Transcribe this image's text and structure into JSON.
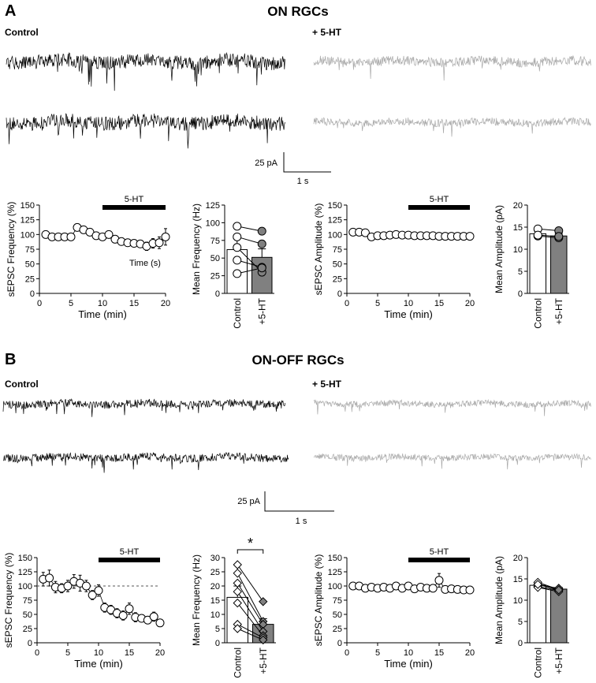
{
  "panels": [
    {
      "letter": "A",
      "title": "ON RGCs",
      "trace_labels": {
        "control": "Control",
        "drug": "+ 5-HT"
      },
      "scalebar": {
        "amp": "25 pA",
        "time": "1 s"
      }
    },
    {
      "letter": "B",
      "title": "ON-OFF  RGCs",
      "trace_labels": {
        "control": "Control",
        "drug": "+ 5-HT"
      },
      "scalebar": {
        "amp": "25 pA",
        "time": "1 s"
      }
    }
  ],
  "colors": {
    "control_trace": "#000000",
    "drug_trace": "#aaaaaa",
    "bar_drug": "#808080"
  },
  "chart_data": [
    {
      "id": "A1",
      "type": "scatter",
      "ylabel": "sEPSC Frequency (%)",
      "xlabel": "Time (min)",
      "xlim": [
        0,
        20
      ],
      "ylim": [
        0,
        150
      ],
      "xticks": [
        "0",
        "5",
        "10",
        "15",
        "20"
      ],
      "yticks": [
        "0",
        "25",
        "50",
        "75",
        "100",
        "125",
        "150"
      ],
      "drug_bar": {
        "label": "5-HT",
        "from": 10,
        "to": 20
      },
      "annotation": "Time (s)",
      "x": [
        1,
        2,
        3,
        4,
        5,
        6,
        7,
        8,
        9,
        10,
        11,
        12,
        13,
        14,
        15,
        16,
        17,
        18,
        19,
        20
      ],
      "y": [
        100,
        96,
        96,
        96,
        96,
        112,
        108,
        104,
        98,
        96,
        100,
        92,
        88,
        86,
        85,
        84,
        80,
        85,
        86,
        96
      ],
      "err": [
        0,
        0,
        0,
        0,
        0,
        4,
        5,
        4,
        4,
        5,
        5,
        4,
        4,
        4,
        4,
        5,
        7,
        8,
        10,
        14
      ]
    },
    {
      "id": "A2",
      "type": "bar",
      "ylabel": "Mean Frequency (Hz)",
      "ylim": [
        0,
        125
      ],
      "yticks": [
        "0",
        "25",
        "50",
        "75",
        "100",
        "125"
      ],
      "categories": [
        "Control",
        "+5-HT"
      ],
      "values": [
        62,
        51
      ],
      "err": [
        16,
        12
      ],
      "marker": "circle",
      "pairs": [
        [
          95,
          88
        ],
        [
          80,
          70
        ],
        [
          65,
          30
        ],
        [
          47,
          37
        ],
        [
          28,
          36
        ]
      ]
    },
    {
      "id": "A3",
      "type": "scatter",
      "ylabel": "sEPSC Amplitude (%)",
      "xlabel": "Time (min)",
      "xlim": [
        0,
        20
      ],
      "ylim": [
        0,
        150
      ],
      "xticks": [
        "0",
        "5",
        "10",
        "15",
        "20"
      ],
      "yticks": [
        "0",
        "25",
        "50",
        "75",
        "100",
        "125",
        "150"
      ],
      "drug_bar": {
        "label": "5-HT",
        "from": 10,
        "to": 20
      },
      "x": [
        1,
        2,
        3,
        4,
        5,
        6,
        7,
        8,
        9,
        10,
        11,
        12,
        13,
        14,
        15,
        16,
        17,
        18,
        19,
        20
      ],
      "y": [
        104,
        104,
        103,
        96,
        98,
        98,
        99,
        100,
        99,
        99,
        98,
        98,
        98,
        98,
        97,
        97,
        97,
        97,
        97,
        97
      ],
      "err": [
        0,
        0,
        0,
        0,
        2,
        3,
        3,
        3,
        3,
        3,
        3,
        3,
        3,
        3,
        3,
        3,
        3,
        3,
        3,
        3
      ]
    },
    {
      "id": "A4",
      "type": "bar",
      "ylabel": "Mean Amplitude (pA)",
      "ylim": [
        0,
        20
      ],
      "yticks": [
        "0",
        "5",
        "10",
        "15",
        "20"
      ],
      "categories": [
        "Control",
        "+5-HT"
      ],
      "values": [
        13.5,
        13.0
      ],
      "err": [
        0.6,
        0.6
      ],
      "marker": "circle",
      "pairs": [
        [
          14.6,
          14.2
        ],
        [
          13.0,
          12.6
        ],
        [
          13.2,
          12.9
        ]
      ]
    },
    {
      "id": "B1",
      "type": "scatter",
      "ylabel": "sEPSC Frequency (%)",
      "xlabel": "Time (min)",
      "xlim": [
        0,
        20
      ],
      "ylim": [
        0,
        150
      ],
      "xticks": [
        "0",
        "5",
        "10",
        "15",
        "20"
      ],
      "yticks": [
        "0",
        "25",
        "50",
        "75",
        "100",
        "125",
        "150"
      ],
      "drug_bar": {
        "label": "5-HT",
        "from": 10,
        "to": 20
      },
      "baseline": 100,
      "x": [
        1,
        2,
        3,
        4,
        5,
        6,
        7,
        8,
        9,
        10,
        11,
        12,
        13,
        14,
        15,
        16,
        17,
        18,
        19,
        20
      ],
      "y": [
        112,
        114,
        98,
        96,
        100,
        108,
        105,
        100,
        84,
        92,
        62,
        58,
        52,
        48,
        60,
        45,
        43,
        40,
        46,
        35
      ],
      "err": [
        12,
        14,
        10,
        8,
        10,
        12,
        14,
        10,
        8,
        10,
        8,
        8,
        8,
        8,
        10,
        8,
        6,
        6,
        8,
        6
      ]
    },
    {
      "id": "B2",
      "type": "bar",
      "ylabel": "Mean Frequency (Hz)",
      "ylim": [
        0,
        30
      ],
      "yticks": [
        "0",
        "5",
        "10",
        "15",
        "20",
        "25",
        "30"
      ],
      "categories": [
        "Control",
        "+5-HT"
      ],
      "values": [
        16,
        6.5
      ],
      "err": [
        4,
        2
      ],
      "marker": "diamond",
      "significance": "*",
      "pairs": [
        [
          27.5,
          14.5
        ],
        [
          24.5,
          7.5
        ],
        [
          21.0,
          6.5
        ],
        [
          18.0,
          4.0
        ],
        [
          14.0,
          2.5
        ],
        [
          6.5,
          1.8
        ],
        [
          5.0,
          1.0
        ]
      ]
    },
    {
      "id": "B3",
      "type": "scatter",
      "ylabel": "sEPSC Amplitude (%)",
      "xlabel": "Time (min)",
      "xlim": [
        0,
        20
      ],
      "ylim": [
        0,
        150
      ],
      "xticks": [
        "0",
        "5",
        "10",
        "15",
        "20"
      ],
      "yticks": [
        "0",
        "25",
        "50",
        "75",
        "100",
        "125",
        "150"
      ],
      "drug_bar": {
        "label": "5-HT",
        "from": 10,
        "to": 20
      },
      "x": [
        1,
        2,
        3,
        4,
        5,
        6,
        7,
        8,
        9,
        10,
        11,
        12,
        13,
        14,
        15,
        16,
        17,
        18,
        19,
        20
      ],
      "y": [
        100,
        100,
        96,
        98,
        96,
        98,
        96,
        100,
        96,
        100,
        95,
        98,
        96,
        96,
        110,
        94,
        95,
        94,
        93,
        93
      ],
      "err": [
        4,
        4,
        4,
        4,
        4,
        4,
        4,
        4,
        4,
        4,
        4,
        4,
        4,
        4,
        12,
        4,
        4,
        4,
        4,
        4
      ]
    },
    {
      "id": "B4",
      "type": "bar",
      "ylabel": "Mean Amplitude (pA)",
      "ylim": [
        0,
        20
      ],
      "yticks": [
        "0",
        "5",
        "10",
        "15",
        "20"
      ],
      "categories": [
        "Control",
        "+5-HT"
      ],
      "values": [
        13.5,
        12.6
      ],
      "err": [
        0.4,
        0.4
      ],
      "marker": "diamond",
      "pairs": [
        [
          14.2,
          12.5
        ],
        [
          13.6,
          12.8
        ],
        [
          13.2,
          12.3
        ],
        [
          13.0,
          12.0
        ],
        [
          13.7,
          12.4
        ]
      ]
    }
  ]
}
